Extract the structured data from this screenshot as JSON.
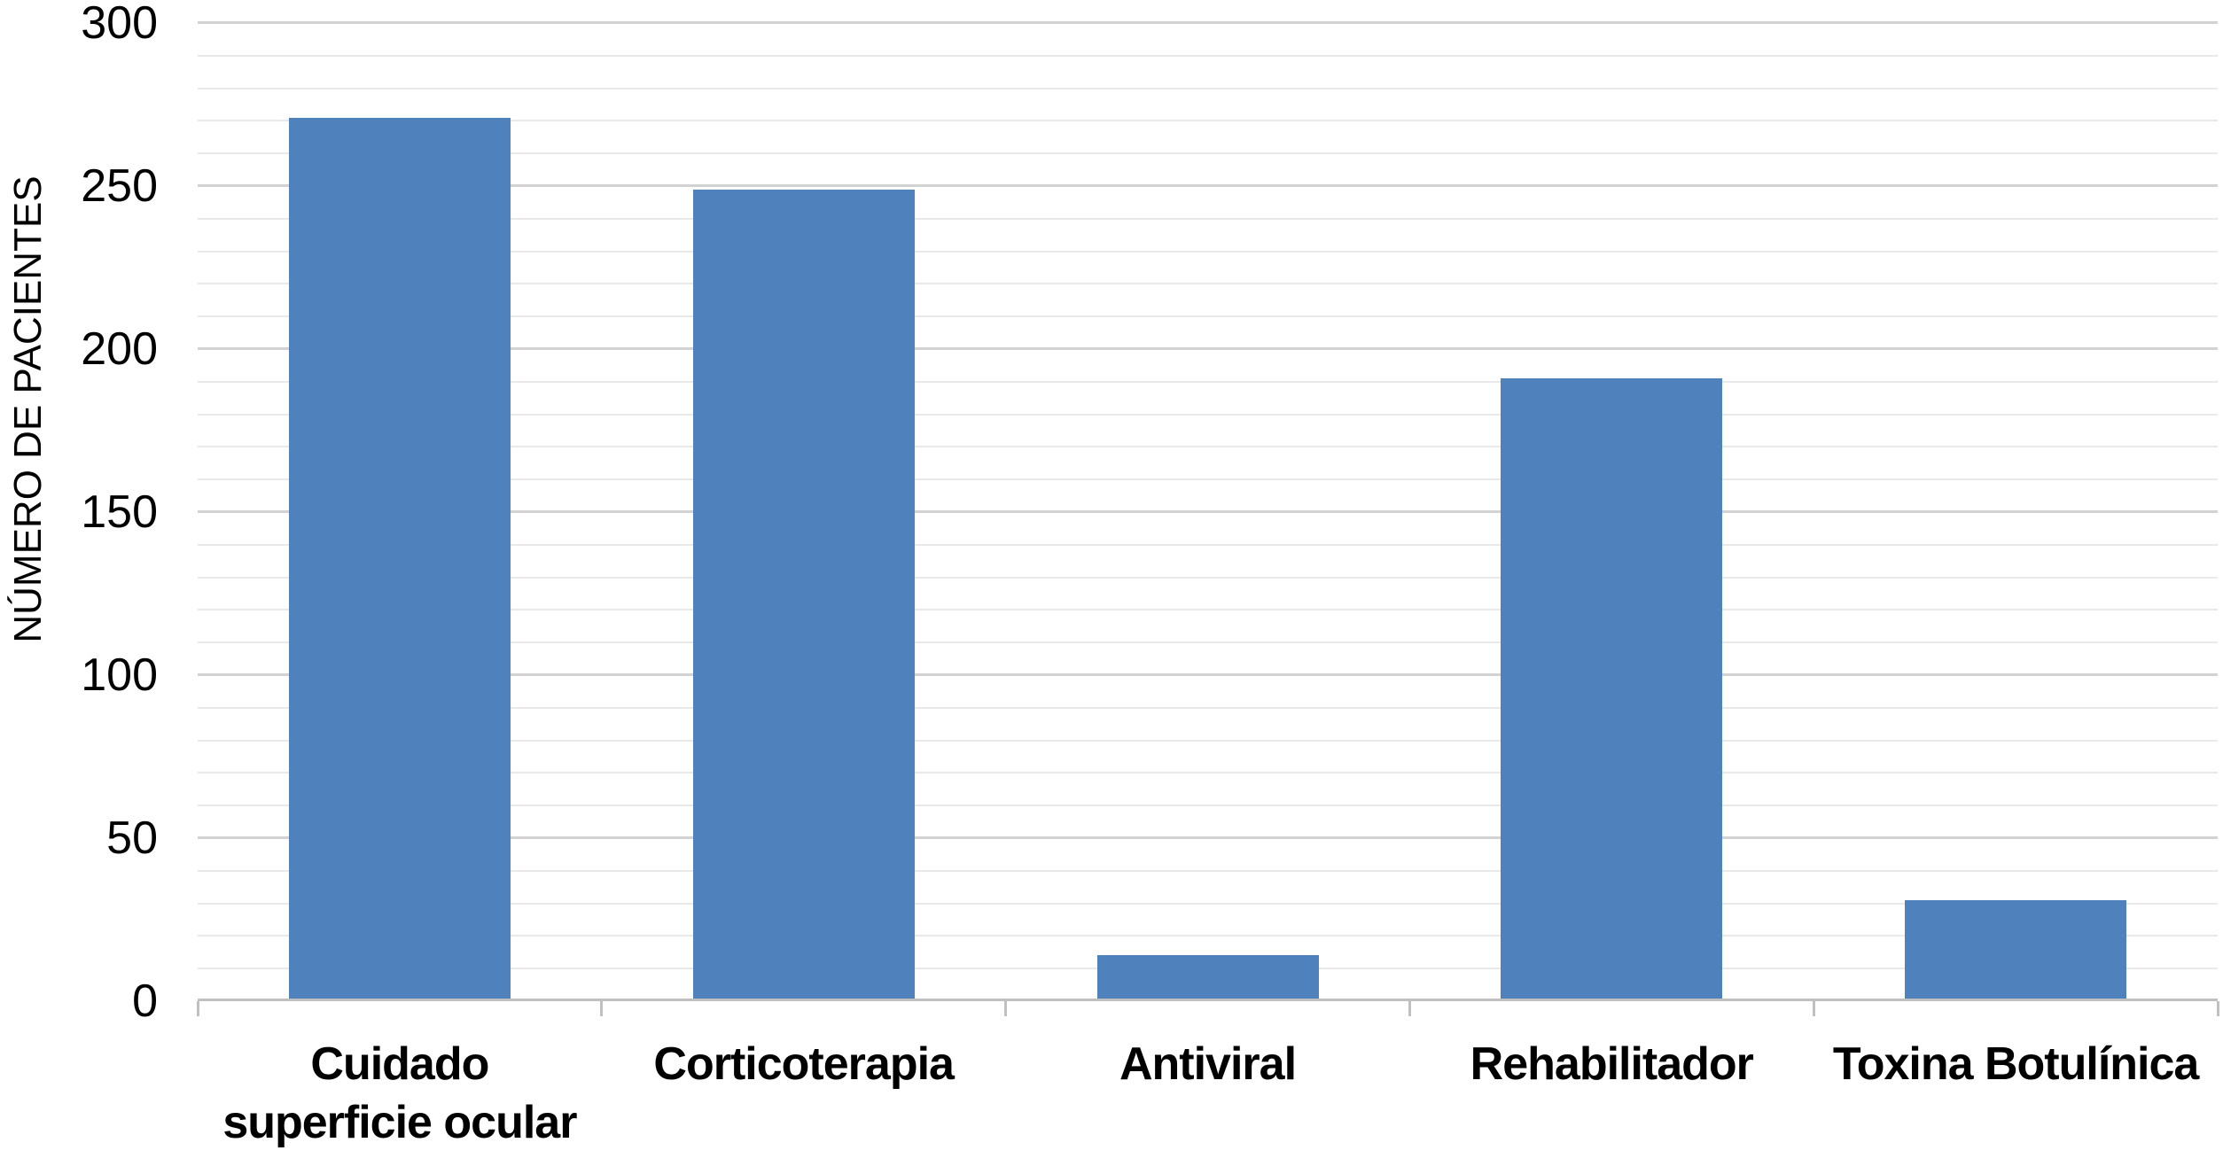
{
  "chart_data": {
    "type": "bar",
    "title": "",
    "xlabel": "",
    "ylabel": "NÚMERO DE PACIENTES",
    "categories": [
      "Cuidado superficie ocular",
      "Corticoterapia",
      "Antiviral",
      "Rehabilitador",
      "Toxina Botulínica"
    ],
    "category_lines": [
      [
        "Cuidado",
        "superficie ocular"
      ],
      [
        "Corticoterapia"
      ],
      [
        "Antiviral"
      ],
      [
        "Rehabilitador"
      ],
      [
        "Toxina Botulínica"
      ]
    ],
    "values": [
      271,
      249,
      14,
      191,
      31
    ],
    "ylim": [
      0,
      300
    ],
    "yticks": [
      0,
      50,
      100,
      150,
      200,
      250,
      300
    ],
    "minor_gridline_step": 10,
    "major_gridline_step": 50,
    "grid": true,
    "legend": false,
    "bar_color": "#4f81bd",
    "colors": {
      "bar": "#4f81bd",
      "major_grid": "#d2d2d2",
      "minor_grid": "#e9e9e9",
      "axis": "#c0c0c0",
      "text": "#000000",
      "background": "#ffffff"
    }
  }
}
